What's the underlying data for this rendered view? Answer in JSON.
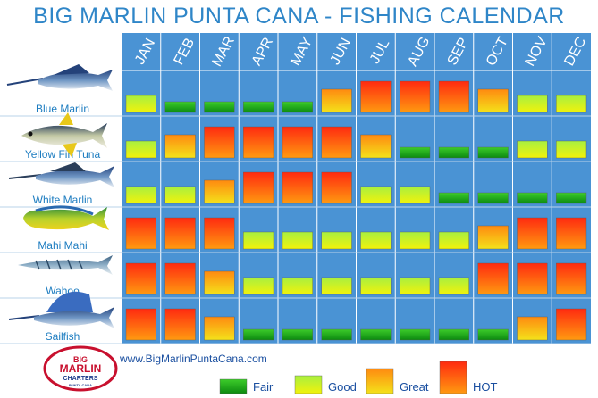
{
  "title": "BIG MARLIN PUNTA CANA - FISHING CALENDAR",
  "website": "www.BigMarlinPuntaCana.com",
  "logo": {
    "line1": "BIG",
    "line2": "MARLIN",
    "line3": "CHARTERS",
    "line4": "PUNTA CANA"
  },
  "colors": {
    "grid_background": "#4a93d4",
    "grid_line": "#ffffff",
    "title": "#2f86c8",
    "fish_label": "#1c7cc0"
  },
  "chart_data": {
    "type": "heatmap",
    "title": "BIG MARLIN PUNTA CANA - FISHING CALENDAR",
    "months": [
      "JAN",
      "FEB",
      "MAR",
      "APR",
      "MAY",
      "JUN",
      "JUL",
      "AUG",
      "SEP",
      "OCT",
      "NOV",
      "DEC"
    ],
    "levels": [
      "Fair",
      "Good",
      "Great",
      "HOT"
    ],
    "scale": {
      "1": "Fair",
      "2": "Good",
      "3": "Great",
      "4": "HOT"
    },
    "species": [
      {
        "name": "Blue Marlin",
        "values": [
          2,
          1,
          1,
          1,
          1,
          3,
          4,
          4,
          4,
          3,
          2,
          2
        ]
      },
      {
        "name": "Yellow Fin Tuna",
        "values": [
          2,
          3,
          4,
          4,
          4,
          4,
          3,
          1,
          1,
          1,
          2,
          2
        ]
      },
      {
        "name": "White Marlin",
        "values": [
          2,
          2,
          3,
          4,
          4,
          4,
          2,
          2,
          1,
          1,
          1,
          1
        ]
      },
      {
        "name": "Mahi Mahi",
        "values": [
          4,
          4,
          4,
          2,
          2,
          2,
          2,
          2,
          2,
          3,
          4,
          4
        ]
      },
      {
        "name": "Wahoo",
        "values": [
          4,
          4,
          3,
          2,
          2,
          2,
          2,
          2,
          2,
          4,
          4,
          4
        ]
      },
      {
        "name": "Sailfish",
        "values": [
          4,
          4,
          3,
          1,
          1,
          1,
          1,
          1,
          1,
          1,
          3,
          4
        ]
      }
    ]
  },
  "legend": [
    {
      "label": "Fair",
      "level": 1
    },
    {
      "label": "Good",
      "level": 2
    },
    {
      "label": "Great",
      "level": 3
    },
    {
      "label": "HOT",
      "level": 4
    }
  ]
}
